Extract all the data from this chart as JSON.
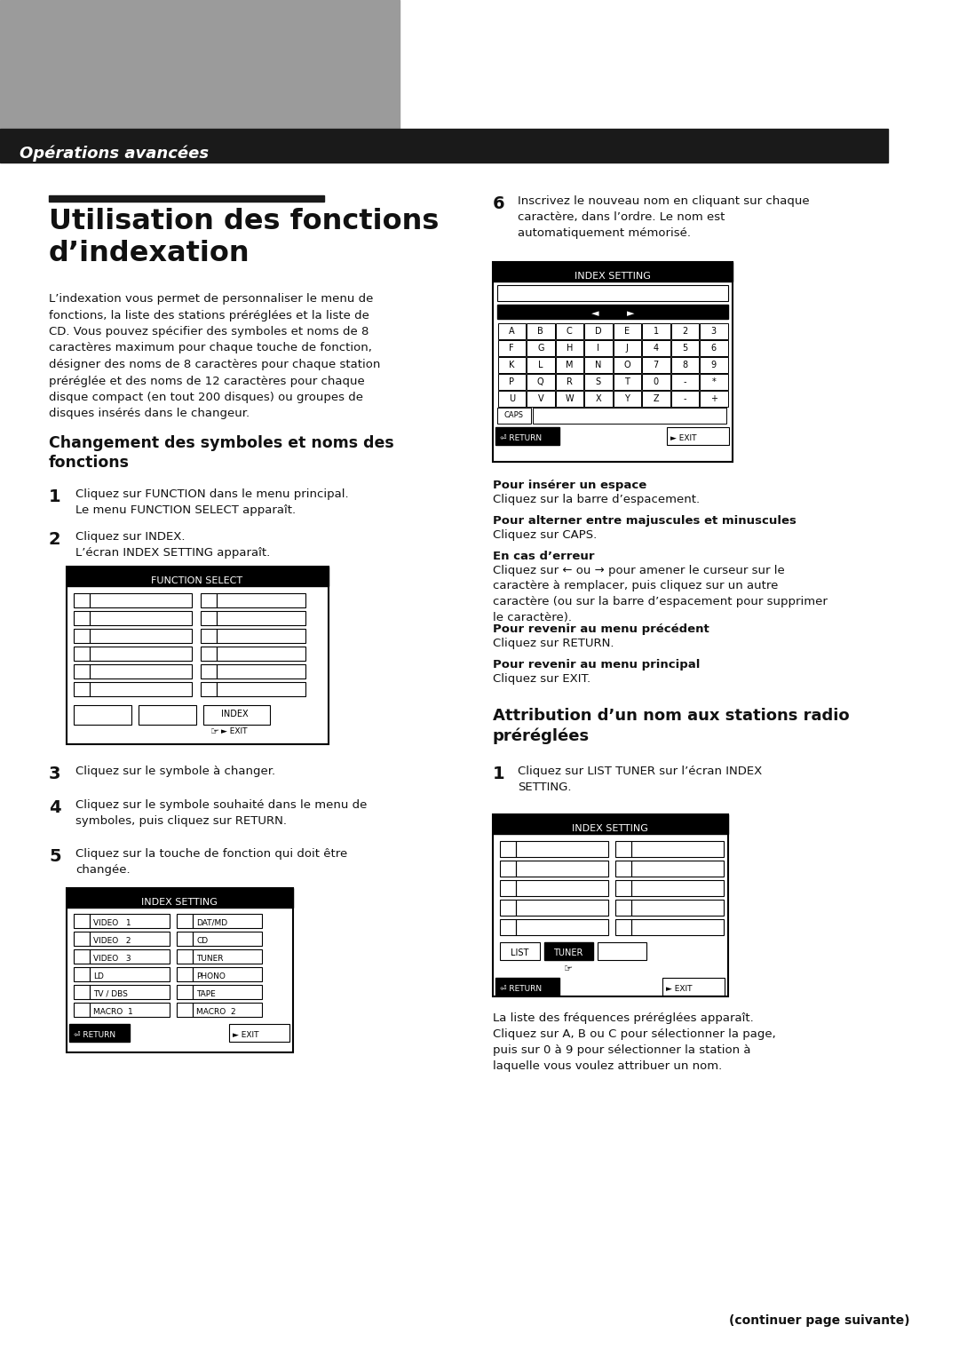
{
  "bg_color": "#ffffff",
  "header_bg": "#1a1a1a",
  "header_text": "Opérations avancées",
  "header_text_color": "#ffffff",
  "gray_rect_color": "#9b9b9b",
  "title_bar_color": "#1a1a1a",
  "main_title_line1": "Utilisation des fonctions",
  "main_title_line2": "d’indexation",
  "intro_text": "L’indexation vous permet de personnaliser le menu de\nfonctions, la liste des stations préréglées et la liste de\nCD. Vous pouvez spécifier des symboles et noms de 8\ncaractères maximum pour chaque touche de fonction,\ndésigner des noms de 8 caractères pour chaque station\npréréglée et des noms de 12 caractères pour chaque\ndisque compact (en tout 200 disques) ou groupes de\ndisques insérés dans le changeur.",
  "section1_title": "Changement des symboles et noms des\nfonctions",
  "step1_num": "1",
  "step1_text": "Cliquez sur FUNCTION dans le menu principal.\nLe menu FUNCTION SELECT apparaît.",
  "step2_num": "2",
  "step2_text": "Cliquez sur INDEX.\nL’écran INDEX SETTING apparaît.",
  "step3_num": "3",
  "step3_text": "Cliquez sur le symbole à changer.",
  "step4_num": "4",
  "step4_text": "Cliquez sur le symbole souhaité dans le menu de\nsymboles, puis cliquez sur RETURN.",
  "step5_num": "5",
  "step5_text": "Cliquez sur la touche de fonction qui doit être\nchangée.",
  "step6_num": "6",
  "step6_text": "Inscrivez le nouveau nom en cliquant sur chaque\ncaractère, dans l’ordre. Le nom est\nautomatiquement mémorisé.",
  "note1_title": "Pour insérer un espace",
  "note1_text": "Cliquez sur la barre d’espacement.",
  "note2_title": "Pour alterner entre majuscules et minuscules",
  "note2_text": "Cliquez sur CAPS.",
  "note3_title": "En cas d’erreur",
  "note3_text": "Cliquez sur ← ou → pour amener le curseur sur le\ncaractère à remplacer, puis cliquez sur un autre\ncaractère (ou sur la barre d’espacement pour supprimer\nle caractère).",
  "note4_title": "Pour revenir au menu précédent",
  "note4_text": "Cliquez sur RETURN.",
  "note5_title": "Pour revenir au menu principal",
  "note5_text": "Cliquez sur EXIT.",
  "section2_title": "Attribution d’un nom aux stations radio\npréréglées",
  "section2_step1_num": "1",
  "section2_step1_text": "Cliquez sur LIST TUNER sur l’écran INDEX\nSETTING.",
  "section2_para": "La liste des fréquences préréglées apparaît.\nCliquez sur A, B ou C pour sélectionner la page,\npuis sur 0 à 9 pour sélectionner la station à\nlaquelle vous voulez attribuer un nom.",
  "footer_text": "(continuer page suivante)"
}
